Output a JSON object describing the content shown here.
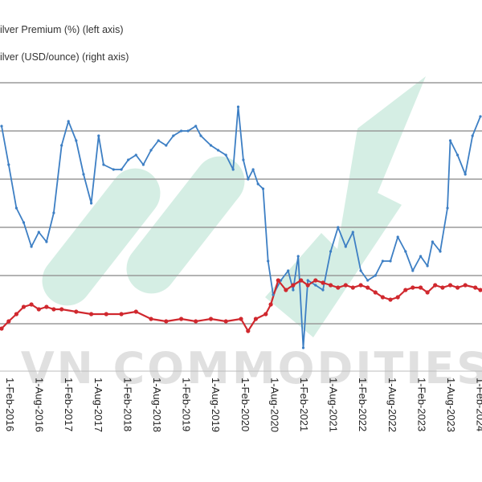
{
  "chart_data": {
    "type": "line",
    "xlabel": "",
    "ylabel": "",
    "legend": [
      {
        "label": "ilver Premium (%) (left axis)",
        "color": "#3d7fc4"
      },
      {
        "label": "ilver (USD/ounce) (right axis)",
        "color": "#d0282e"
      }
    ],
    "legend_placement": "top-left",
    "grid": true,
    "x_tick_labels": [
      "1-Feb-2016",
      "1-Aug-2016",
      "1-Feb-2017",
      "1-Aug-2017",
      "1-Feb-2018",
      "1-Aug-2018",
      "1-Feb-2019",
      "1-Aug-2019",
      "1-Feb-2020",
      "1-Aug-2020",
      "1-Feb-2021",
      "1-Aug-2021",
      "1-Feb-2022",
      "1-Aug-2022",
      "1-Feb-2023",
      "1-Aug-2023",
      "1-Feb-2024"
    ],
    "x_range": [
      "2016-02-01",
      "2024-02-01"
    ],
    "y_left_range": [
      0,
      7
    ],
    "y_right_range": [
      0,
      7
    ],
    "series": [
      {
        "name": "ilver Premium (%) (left axis)",
        "axis": "left",
        "color": "#3d7fc4",
        "points": [
          [
            "2016-02-01",
            4.1
          ],
          [
            "2016-03-15",
            3.3
          ],
          [
            "2016-05-01",
            2.4
          ],
          [
            "2016-06-15",
            2.1
          ],
          [
            "2016-08-01",
            1.6
          ],
          [
            "2016-09-15",
            1.9
          ],
          [
            "2016-11-01",
            1.7
          ],
          [
            "2016-12-15",
            2.3
          ],
          [
            "2017-02-01",
            3.7
          ],
          [
            "2017-03-15",
            4.2
          ],
          [
            "2017-05-01",
            3.8
          ],
          [
            "2017-06-15",
            3.1
          ],
          [
            "2017-08-01",
            2.5
          ],
          [
            "2017-09-15",
            3.9
          ],
          [
            "2017-10-15",
            3.3
          ],
          [
            "2017-12-15",
            3.2
          ],
          [
            "2018-02-01",
            3.2
          ],
          [
            "2018-03-15",
            3.4
          ],
          [
            "2018-05-01",
            3.5
          ],
          [
            "2018-06-15",
            3.3
          ],
          [
            "2018-08-01",
            3.6
          ],
          [
            "2018-09-15",
            3.8
          ],
          [
            "2018-11-01",
            3.7
          ],
          [
            "2018-12-15",
            3.9
          ],
          [
            "2019-02-01",
            4.0
          ],
          [
            "2019-03-15",
            4.0
          ],
          [
            "2019-05-01",
            4.1
          ],
          [
            "2019-06-01",
            3.9
          ],
          [
            "2019-08-01",
            3.7
          ],
          [
            "2019-09-15",
            3.6
          ],
          [
            "2019-11-01",
            3.5
          ],
          [
            "2019-12-15",
            3.2
          ],
          [
            "2020-01-15",
            4.5
          ],
          [
            "2020-02-15",
            3.4
          ],
          [
            "2020-03-15",
            3.0
          ],
          [
            "2020-04-15",
            3.2
          ],
          [
            "2020-05-15",
            2.9
          ],
          [
            "2020-06-15",
            2.8
          ],
          [
            "2020-07-15",
            1.3
          ],
          [
            "2020-08-15",
            0.6
          ],
          [
            "2020-10-01",
            0.9
          ],
          [
            "2020-11-15",
            1.1
          ],
          [
            "2020-12-15",
            0.7
          ],
          [
            "2021-01-15",
            1.4
          ],
          [
            "2021-02-15",
            -0.5
          ],
          [
            "2021-03-15",
            0.9
          ],
          [
            "2021-05-01",
            0.8
          ],
          [
            "2021-06-15",
            0.7
          ],
          [
            "2021-08-01",
            1.5
          ],
          [
            "2021-09-15",
            2.0
          ],
          [
            "2021-11-01",
            1.6
          ],
          [
            "2021-12-15",
            1.9
          ],
          [
            "2022-02-01",
            1.1
          ],
          [
            "2022-03-15",
            0.9
          ],
          [
            "2022-05-01",
            1.0
          ],
          [
            "2022-06-15",
            1.3
          ],
          [
            "2022-08-01",
            1.3
          ],
          [
            "2022-09-15",
            1.8
          ],
          [
            "2022-11-01",
            1.5
          ],
          [
            "2022-12-15",
            1.1
          ],
          [
            "2023-02-01",
            1.4
          ],
          [
            "2023-03-15",
            1.2
          ],
          [
            "2023-04-15",
            1.7
          ],
          [
            "2023-06-01",
            1.5
          ],
          [
            "2023-07-15",
            2.4
          ],
          [
            "2023-08-01",
            3.8
          ],
          [
            "2023-09-15",
            3.5
          ],
          [
            "2023-11-01",
            3.1
          ],
          [
            "2023-12-15",
            3.9
          ],
          [
            "2024-02-01",
            4.3
          ]
        ]
      },
      {
        "name": "ilver (USD/ounce) (right axis)",
        "axis": "right",
        "color": "#d0282e",
        "points": [
          [
            "2016-02-01",
            -0.1
          ],
          [
            "2016-03-15",
            0.05
          ],
          [
            "2016-05-01",
            0.2
          ],
          [
            "2016-06-15",
            0.35
          ],
          [
            "2016-08-01",
            0.4
          ],
          [
            "2016-09-15",
            0.3
          ],
          [
            "2016-11-01",
            0.35
          ],
          [
            "2016-12-15",
            0.3
          ],
          [
            "2017-02-01",
            0.3
          ],
          [
            "2017-05-01",
            0.25
          ],
          [
            "2017-08-01",
            0.2
          ],
          [
            "2017-11-01",
            0.2
          ],
          [
            "2018-02-01",
            0.2
          ],
          [
            "2018-05-01",
            0.25
          ],
          [
            "2018-08-01",
            0.1
          ],
          [
            "2018-11-01",
            0.05
          ],
          [
            "2019-02-01",
            0.1
          ],
          [
            "2019-05-01",
            0.05
          ],
          [
            "2019-08-01",
            0.1
          ],
          [
            "2019-11-01",
            0.05
          ],
          [
            "2020-02-01",
            0.1
          ],
          [
            "2020-03-15",
            -0.15
          ],
          [
            "2020-05-01",
            0.1
          ],
          [
            "2020-07-01",
            0.2
          ],
          [
            "2020-08-01",
            0.4
          ],
          [
            "2020-09-15",
            0.9
          ],
          [
            "2020-11-01",
            0.7
          ],
          [
            "2020-12-15",
            0.8
          ],
          [
            "2021-02-01",
            0.9
          ],
          [
            "2021-03-15",
            0.8
          ],
          [
            "2021-05-01",
            0.9
          ],
          [
            "2021-06-15",
            0.85
          ],
          [
            "2021-08-01",
            0.8
          ],
          [
            "2021-09-15",
            0.75
          ],
          [
            "2021-11-01",
            0.8
          ],
          [
            "2021-12-15",
            0.75
          ],
          [
            "2022-02-01",
            0.8
          ],
          [
            "2022-03-15",
            0.75
          ],
          [
            "2022-05-01",
            0.65
          ],
          [
            "2022-06-15",
            0.55
          ],
          [
            "2022-08-01",
            0.5
          ],
          [
            "2022-09-15",
            0.55
          ],
          [
            "2022-11-01",
            0.7
          ],
          [
            "2022-12-15",
            0.75
          ],
          [
            "2023-02-01",
            0.75
          ],
          [
            "2023-03-15",
            0.65
          ],
          [
            "2023-05-01",
            0.8
          ],
          [
            "2023-06-15",
            0.75
          ],
          [
            "2023-08-01",
            0.8
          ],
          [
            "2023-09-15",
            0.75
          ],
          [
            "2023-11-01",
            0.8
          ],
          [
            "2024-01-01",
            0.75
          ],
          [
            "2024-02-01",
            0.7
          ]
        ]
      }
    ]
  },
  "watermark": {
    "text": "VN COMMODITIES",
    "color": "#c8c8c8",
    "arrow_color": "#7ccaaa"
  }
}
